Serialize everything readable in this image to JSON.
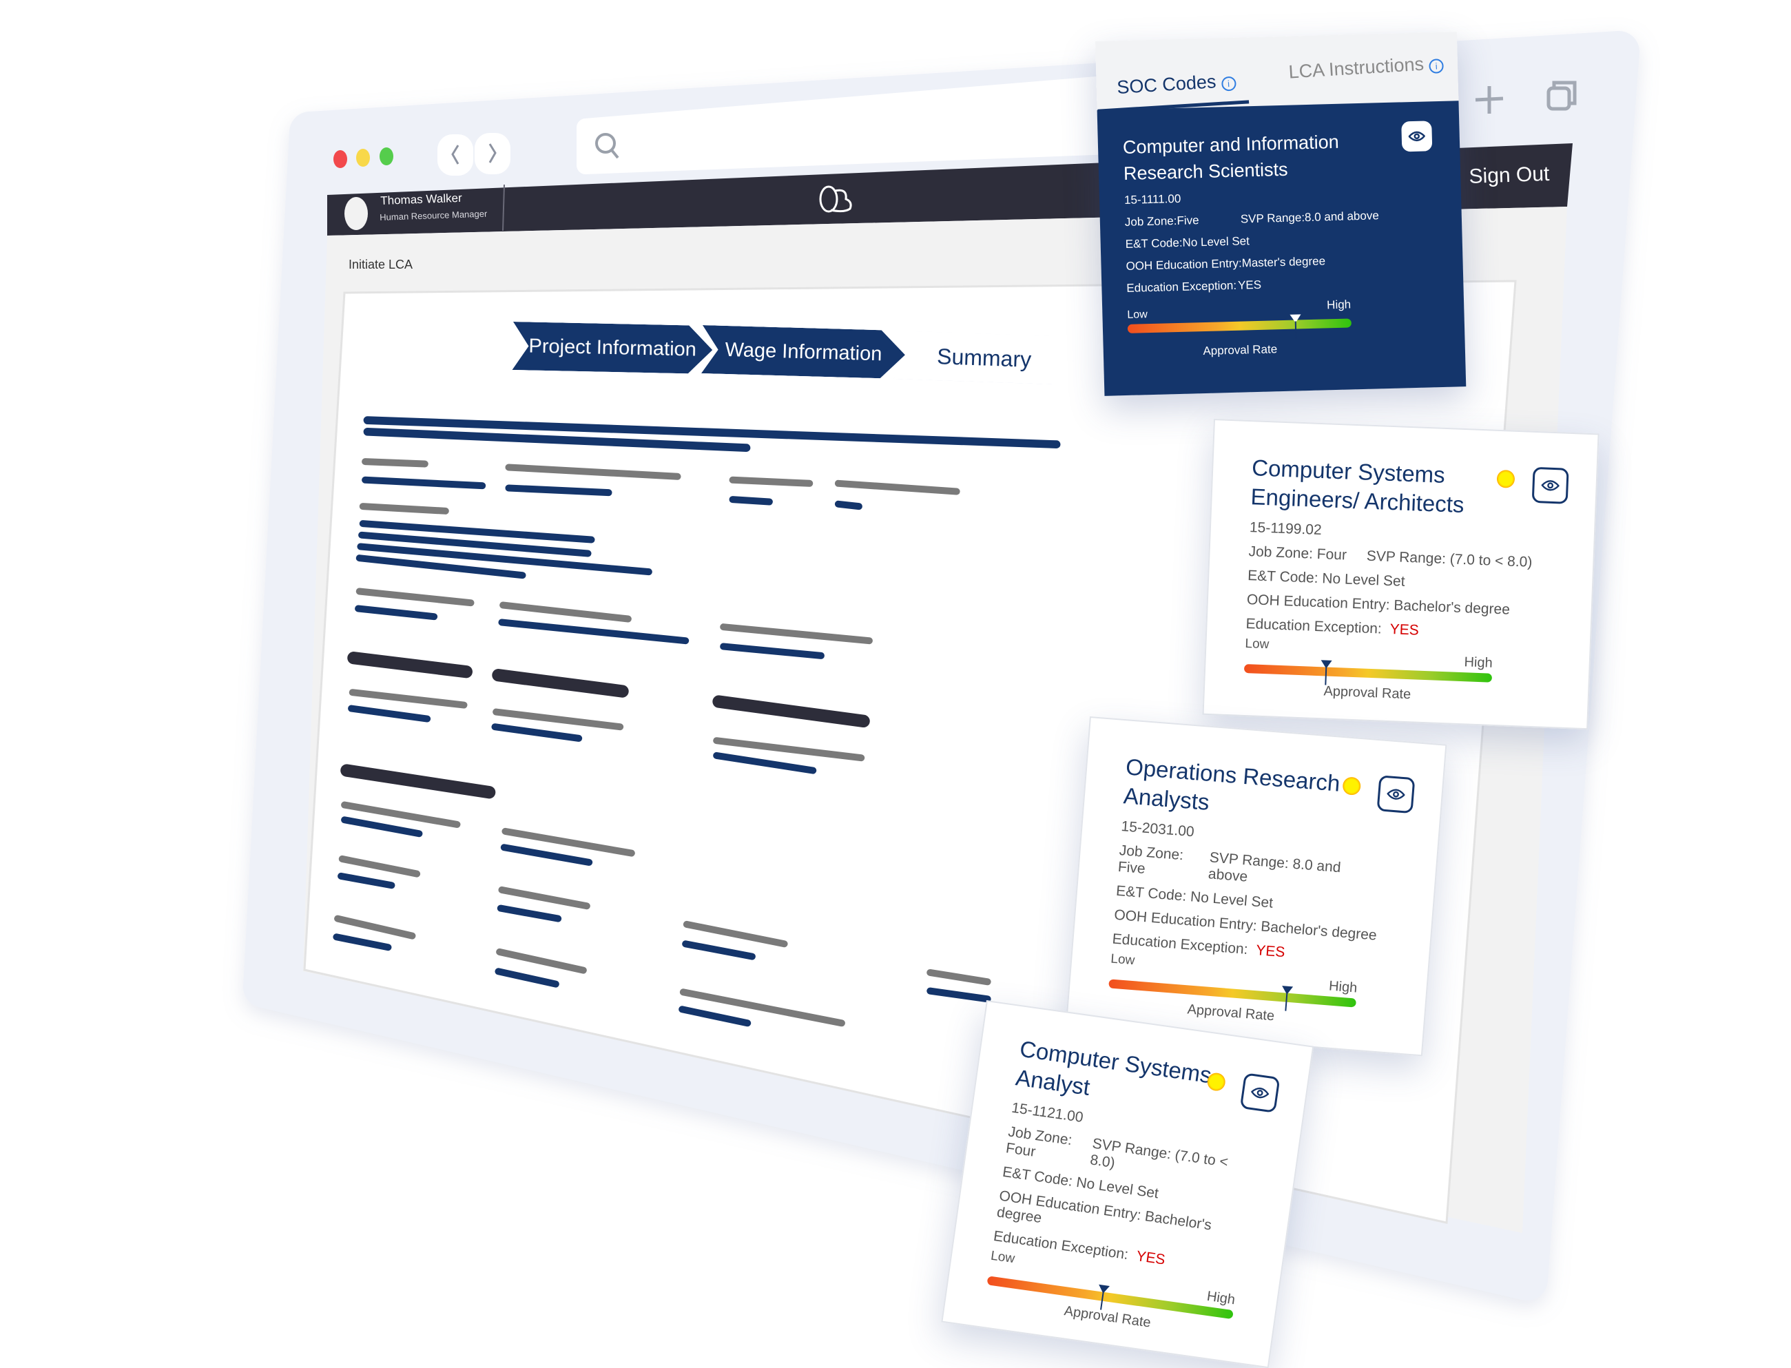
{
  "browser": {
    "window_controls": [
      "close",
      "minimize",
      "maximize"
    ],
    "nav_icons": [
      "chevron-left-icon",
      "chevron-right-icon"
    ],
    "search_icon": "search-icon",
    "right_icons": [
      "plus-icon",
      "copy-windows-icon"
    ]
  },
  "header": {
    "user_name": "Thomas Walker",
    "user_role": "Human Resource Manager",
    "logo_icon": "logo-icon",
    "sign_out": "Sign Out"
  },
  "page": {
    "breadcrumb": "Initiate LCA",
    "steps": [
      {
        "label": "Project Information",
        "state": "complete"
      },
      {
        "label": "Wage Information",
        "state": "complete"
      },
      {
        "label": "Summary",
        "state": "current"
      }
    ]
  },
  "panel": {
    "tabs": [
      {
        "label": "SOC Codes",
        "active": true
      },
      {
        "label": "LCA Instructions",
        "active": false
      }
    ]
  },
  "cards": [
    {
      "title": "Computer and Information Research Scientists",
      "code": "15-1111.00",
      "job_zone": "Job Zone:Five",
      "svp_range": "SVP Range:8.0 and above",
      "et_code": "E&T Code:No Level Set",
      "ooh_entry": "OOH Education Entry:Master's degree",
      "edu_exception_label": "Education Exception:",
      "edu_exception_value": "YES",
      "gauge": {
        "low": "Low",
        "high": "High",
        "label": "Approval Rate",
        "value": 0.75
      }
    },
    {
      "title": "Computer Systems Engineers/ Architects",
      "code": "15-1199.02",
      "job_zone": "Job Zone: Four",
      "svp_range": "SVP Range: (7.0 to < 8.0)",
      "et_code": "E&T Code: No Level Set",
      "ooh_entry": "OOH Education Entry: Bachelor's degree",
      "edu_exception_label": "Education Exception:",
      "edu_exception_value": "YES",
      "gauge": {
        "low": "Low",
        "high": "High",
        "label": "Approval Rate",
        "value": 0.33
      }
    },
    {
      "title": "Operations Research Analysts",
      "code": "15-2031.00",
      "job_zone": "Job Zone: Five",
      "svp_range": "SVP Range: 8.0 and above",
      "et_code": "E&T Code: No Level Set",
      "ooh_entry": "OOH Education Entry: Bachelor's degree",
      "edu_exception_label": "Education Exception:",
      "edu_exception_value": "YES",
      "gauge": {
        "low": "Low",
        "high": "High",
        "label": "Approval Rate",
        "value": 0.72
      }
    },
    {
      "title": "Computer Systems Analyst",
      "code": "15-1121.00",
      "job_zone": "Job Zone: Four",
      "svp_range": "SVP Range: (7.0 to < 8.0)",
      "et_code": "E&T Code: No Level Set",
      "ooh_entry": "OOH Education Entry: Bachelor's degree",
      "edu_exception_label": "Education Exception:",
      "edu_exception_value": "YES",
      "gauge": {
        "low": "Low",
        "high": "High",
        "label": "Approval Rate",
        "value": 0.47
      }
    }
  ],
  "colors": {
    "navy": "#14356b",
    "header_dark": "#2d2d3a",
    "frame": "#eef1f8",
    "yes_red": "#d50000",
    "info_blue": "#2f7de1"
  }
}
